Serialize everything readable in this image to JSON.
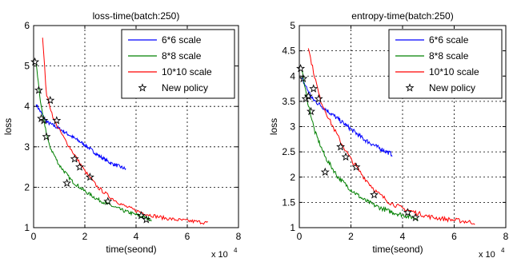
{
  "chart_data": [
    {
      "type": "line",
      "title": "loss-time(batch:250)",
      "xlabel": "time(seond)",
      "ylabel": "loss",
      "x_multiplier": "x 10",
      "x_multiplier_exp": "4",
      "xlim": [
        0,
        8
      ],
      "ylim": [
        1,
        6
      ],
      "x_ticks": [
        "0",
        "2",
        "4",
        "6",
        "8"
      ],
      "y_ticks": [
        "1",
        "2",
        "3",
        "4",
        "5",
        "6"
      ],
      "grid": true,
      "legend_position": "top-right",
      "series": [
        {
          "name": "6*6 scale",
          "color": "#0000ff",
          "x": [
            0.1,
            0.5,
            1.0,
            1.5,
            2.0,
            2.5,
            3.0,
            3.6
          ],
          "y": [
            4.05,
            3.62,
            3.45,
            3.25,
            3.05,
            2.8,
            2.6,
            2.45
          ]
        },
        {
          "name": "8*8 scale",
          "color": "#008000",
          "x": [
            0.1,
            0.3,
            0.6,
            1.0,
            1.5,
            2.0,
            2.5,
            3.0,
            3.5,
            4.0,
            4.6
          ],
          "y": [
            5.05,
            3.95,
            3.05,
            2.55,
            2.15,
            1.9,
            1.7,
            1.55,
            1.42,
            1.32,
            1.2
          ]
        },
        {
          "name": "10*10 scale",
          "color": "#ff0000",
          "x": [
            0.35,
            0.5,
            0.8,
            1.2,
            1.6,
            2.0,
            2.5,
            3.0,
            3.5,
            4.0,
            4.5,
            5.0,
            5.5,
            6.0,
            6.8
          ],
          "y": [
            5.7,
            4.3,
            3.65,
            3.2,
            2.8,
            2.4,
            2.0,
            1.75,
            1.55,
            1.42,
            1.32,
            1.25,
            1.2,
            1.17,
            1.12
          ]
        },
        {
          "name": "New policy",
          "marker": "star",
          "x": [
            0.05,
            0.2,
            0.3,
            0.4,
            0.5,
            0.65,
            0.9,
            1.3,
            1.6,
            1.8,
            2.2,
            2.9,
            4.2,
            4.4
          ],
          "y": [
            5.1,
            4.4,
            3.7,
            3.65,
            3.25,
            4.15,
            3.65,
            2.1,
            2.7,
            2.5,
            2.25,
            1.65,
            1.3,
            1.2
          ]
        }
      ]
    },
    {
      "type": "line",
      "title": "entropy-time(batch:250)",
      "xlabel": "time(seond)",
      "ylabel": "loss",
      "x_multiplier": "x 10",
      "x_multiplier_exp": "4",
      "xlim": [
        0,
        8
      ],
      "ylim": [
        1,
        5
      ],
      "x_ticks": [
        "0",
        "2",
        "4",
        "6",
        "8"
      ],
      "y_ticks": [
        "1",
        "1.5",
        "2",
        "2.5",
        "3",
        "3.5",
        "4",
        "4.5",
        "5"
      ],
      "grid": true,
      "legend_position": "top-right",
      "series": [
        {
          "name": "6*6 scale",
          "color": "#0000ff",
          "x": [
            0.1,
            0.5,
            1.0,
            1.5,
            2.0,
            2.5,
            3.0,
            3.6
          ],
          "y": [
            3.95,
            3.55,
            3.35,
            3.15,
            2.95,
            2.75,
            2.6,
            2.45
          ]
        },
        {
          "name": "8*8 scale",
          "color": "#008000",
          "x": [
            0.1,
            0.3,
            0.6,
            1.0,
            1.5,
            2.0,
            2.5,
            3.0,
            3.5,
            4.0,
            4.6
          ],
          "y": [
            4.1,
            3.55,
            2.9,
            2.4,
            2.0,
            1.75,
            1.55,
            1.42,
            1.32,
            1.25,
            1.18
          ]
        },
        {
          "name": "10*10 scale",
          "color": "#ff0000",
          "x": [
            0.35,
            0.5,
            0.8,
            1.2,
            1.6,
            2.0,
            2.5,
            3.0,
            3.5,
            4.0,
            4.5,
            5.0,
            5.5,
            6.0,
            6.8
          ],
          "y": [
            4.55,
            4.2,
            3.55,
            3.1,
            2.7,
            2.35,
            2.0,
            1.7,
            1.5,
            1.38,
            1.3,
            1.22,
            1.18,
            1.15,
            1.1
          ]
        },
        {
          "name": "New policy",
          "marker": "star",
          "x": [
            0.05,
            0.15,
            0.25,
            0.35,
            0.45,
            0.55,
            0.75,
            1.0,
            1.6,
            1.8,
            2.2,
            2.9,
            4.2,
            4.5
          ],
          "y": [
            4.15,
            3.95,
            3.55,
            3.6,
            3.3,
            3.75,
            3.55,
            2.1,
            2.6,
            2.4,
            2.2,
            1.65,
            1.3,
            1.2
          ]
        }
      ]
    }
  ]
}
